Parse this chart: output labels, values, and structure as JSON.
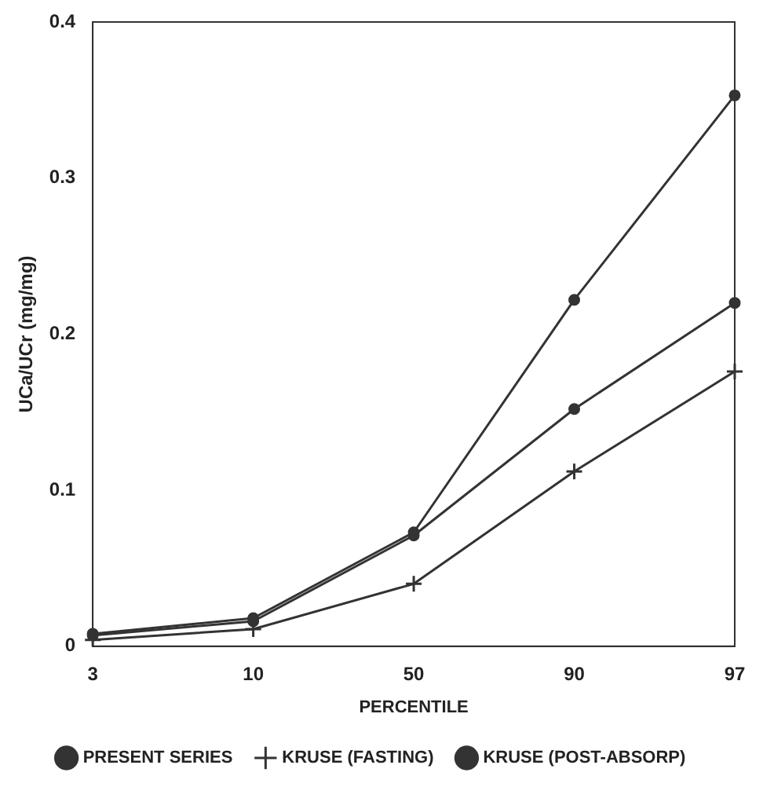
{
  "chart_data": {
    "type": "line",
    "xlabel": "PERCENTILE",
    "ylabel": "UCa/UCr (mg/mg)",
    "categories": [
      "3",
      "10",
      "50",
      "90",
      "97"
    ],
    "series": [
      {
        "name": "PRESENT SERIES",
        "color": "#333333",
        "marker": "circle",
        "values": [
          0.008,
          0.018,
          0.073,
          0.222,
          0.353
        ]
      },
      {
        "name": "KRUSE (FASTING)",
        "color": "#333333",
        "marker": "cross",
        "values": [
          0.004,
          0.011,
          0.04,
          0.112,
          0.176
        ]
      },
      {
        "name": "KRUSE (POST-ABSORP)",
        "color": "#333333",
        "marker": "circle",
        "values": [
          0.007,
          0.016,
          0.071,
          0.152,
          0.22
        ]
      }
    ],
    "ylim": [
      0,
      0.4
    ],
    "yticks": [
      0,
      0.1,
      0.2,
      0.3,
      0.4
    ],
    "grid": false,
    "legend": "bottom"
  }
}
